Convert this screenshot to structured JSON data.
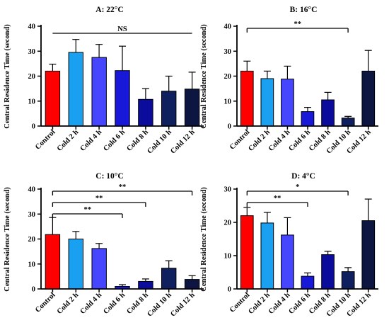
{
  "colors": {
    "categories": [
      "#ff0000",
      "#19a0f0",
      "#4646ff",
      "#1818d8",
      "#0c0c9c",
      "#10205e",
      "#0c1640"
    ],
    "axis": "#000000",
    "error_bar": "#000000"
  },
  "chart_data": [
    {
      "type": "bar",
      "title": "A: 22°C",
      "ylabel": "Central Residence Time (second)",
      "xlabel": "",
      "ylim": [
        0,
        40
      ],
      "yticks": [
        "0",
        "10",
        "20",
        "30",
        "40"
      ],
      "categories": [
        "Control",
        "Cold 2 h",
        "Cold 4 h",
        "Cold 6 h",
        "Cold 8 h",
        "Cold 10 h",
        "Cold 12 h"
      ],
      "values": [
        22,
        29.5,
        27.5,
        22.2,
        10.7,
        14,
        14.8
      ],
      "errors": [
        2.8,
        5.2,
        5.2,
        9.8,
        4.3,
        6,
        6.8
      ],
      "significance": [
        {
          "from": "Control",
          "to": "Cold 12 h",
          "label": "NS"
        }
      ]
    },
    {
      "type": "bar",
      "title": "B: 16°C",
      "ylabel": "Central Residence Time (second)",
      "xlabel": "",
      "ylim": [
        0,
        40
      ],
      "yticks": [
        "0",
        "10",
        "20",
        "30",
        "40"
      ],
      "categories": [
        "Control",
        "Cold 2 h",
        "Cold 4 h",
        "Cold 6 h",
        "Cold 8 h",
        "Cold 10 h",
        "Cold 12 h"
      ],
      "values": [
        22,
        19,
        18.8,
        5.8,
        10.5,
        3.2,
        22
      ],
      "errors": [
        4,
        3,
        5.2,
        1.7,
        3,
        0.7,
        8.3
      ],
      "significance": [
        {
          "from": "Control",
          "to": "Cold 10 h",
          "label": "**"
        }
      ]
    },
    {
      "type": "bar",
      "title": "C: 10°C",
      "ylabel": "Central Residence Time (second)",
      "xlabel": "",
      "ylim": [
        0,
        40
      ],
      "yticks": [
        "0",
        "10",
        "20",
        "30",
        "40"
      ],
      "categories": [
        "Control",
        "Cold 2 h",
        "Cold 4 h",
        "Cold 6 h",
        "Cold 8 h",
        "Cold 10 h",
        "Cold 12 h"
      ],
      "values": [
        21.8,
        20,
        16.2,
        1,
        3,
        8.3,
        3.8
      ],
      "errors": [
        6.8,
        3,
        2,
        0.7,
        1,
        3,
        1.5
      ],
      "significance": [
        {
          "from": "Control",
          "to": "Cold 12 h",
          "label": "**"
        },
        {
          "from": "Control",
          "to": "Cold 8 h",
          "label": "**"
        },
        {
          "from": "Control",
          "to": "Cold 6 h",
          "label": "**"
        }
      ]
    },
    {
      "type": "bar",
      "title": "D: 4°C",
      "ylabel": "Central Residence Time (second)",
      "xlabel": "",
      "ylim": [
        0,
        30
      ],
      "yticks": [
        "0",
        "10",
        "20",
        "30"
      ],
      "categories": [
        "Control",
        "Cold 2 h",
        "Cold 4 h",
        "Cold 6 h",
        "Cold 8 h",
        "Cold 10 h",
        "Cold 12 h"
      ],
      "values": [
        22,
        19.8,
        16.2,
        3.8,
        10.3,
        5.2,
        20.5
      ],
      "errors": [
        2.5,
        3.2,
        5.2,
        1,
        1,
        1.2,
        6.5
      ],
      "significance": [
        {
          "from": "Control",
          "to": "Cold 10 h",
          "label": "*"
        },
        {
          "from": "Control",
          "to": "Cold 6 h",
          "label": "**"
        }
      ]
    }
  ]
}
